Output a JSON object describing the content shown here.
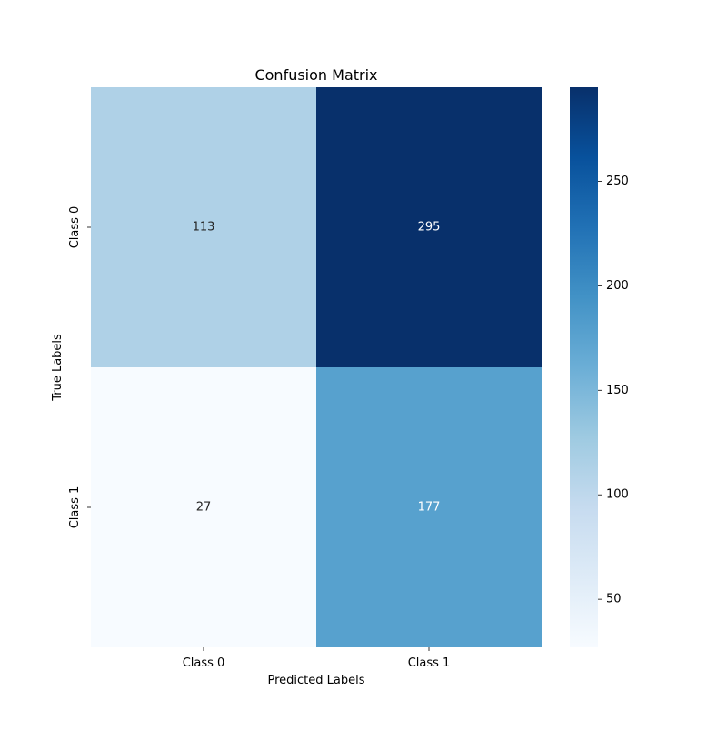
{
  "chart_data": {
    "type": "heatmap",
    "title": "Confusion Matrix",
    "xlabel": "Predicted Labels",
    "ylabel": "True Labels",
    "x_categories": [
      "Class 0",
      "Class 1"
    ],
    "y_categories": [
      "Class 0",
      "Class 1"
    ],
    "values": [
      [
        113,
        295
      ],
      [
        27,
        177
      ]
    ],
    "colormap": "Blues",
    "color_range": [
      27,
      295
    ],
    "colorbar_ticks": [
      50,
      100,
      150,
      200,
      250
    ],
    "colorbar_tick_labels": [
      "50",
      "100",
      "150",
      "200",
      "250"
    ],
    "annotation_colors": {
      "light_cell": "#262626",
      "dark_cell": "#ffffff"
    }
  }
}
